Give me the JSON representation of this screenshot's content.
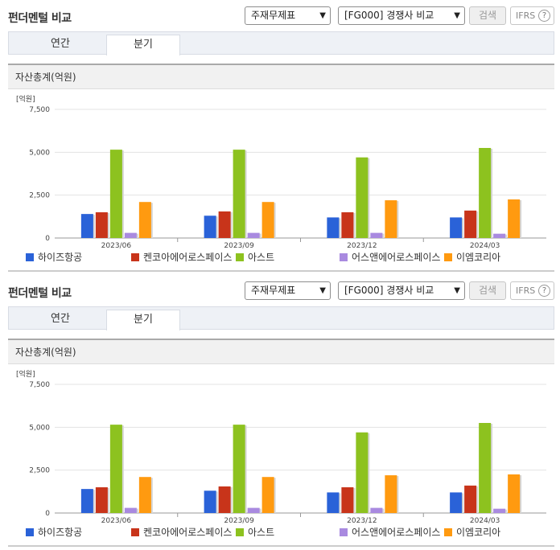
{
  "panels": [
    {
      "title": "펀더멘털 비교",
      "select1": "주재무제표",
      "select2": "[FG000] 경쟁사 비교",
      "search_label": "검색",
      "ifrs_label": "IFRS",
      "help_glyph": "?",
      "tabs": [
        {
          "label": "연간"
        },
        {
          "label": "분기"
        }
      ],
      "active_tab": 1,
      "section_title": "자산총계(억원)",
      "unit_label": "[억원]"
    },
    {
      "title": "펀더멘털 비교",
      "select1": "주재무제표",
      "select2": "[FG000] 경쟁사 비교",
      "search_label": "검색",
      "ifrs_label": "IFRS",
      "help_glyph": "?",
      "tabs": [
        {
          "label": "연간"
        },
        {
          "label": "분기"
        }
      ],
      "active_tab": 1,
      "section_title": "자산총계(억원)",
      "unit_label": "[억원]"
    }
  ],
  "chart_data": [
    {
      "type": "bar",
      "title": "자산총계(억원)",
      "ylabel": "[억원]",
      "ylim": [
        0,
        7500
      ],
      "yticks": [
        "0",
        "2,500",
        "5,000",
        "7,500"
      ],
      "ytick_values": [
        0,
        2500,
        5000,
        7500
      ],
      "grid": true,
      "legend_position": "bottom",
      "categories": [
        "2023/06",
        "2023/09",
        "2023/12",
        "2024/03"
      ],
      "series": [
        {
          "name": "하이즈항공",
          "color": "#2a62d8",
          "values": [
            1400,
            1300,
            1200,
            1200
          ]
        },
        {
          "name": "켄코아에어로스페이스",
          "color": "#c8341a",
          "values": [
            1500,
            1550,
            1500,
            1600
          ]
        },
        {
          "name": "아스트",
          "color": "#8dc21f",
          "values": [
            5150,
            5150,
            4700,
            5250
          ]
        },
        {
          "name": "어스앤에어로스페이스",
          "color": "#a98ae0",
          "values": [
            300,
            300,
            300,
            250
          ]
        },
        {
          "name": "이엠코리아",
          "color": "#ff9a10",
          "values": [
            2100,
            2100,
            2200,
            2250
          ]
        }
      ]
    },
    {
      "type": "bar",
      "title": "자산총계(억원)",
      "ylabel": "[억원]",
      "ylim": [
        0,
        7500
      ],
      "yticks": [
        "0",
        "2,500",
        "5,000",
        "7,500"
      ],
      "ytick_values": [
        0,
        2500,
        5000,
        7500
      ],
      "grid": true,
      "legend_position": "bottom",
      "categories": [
        "2023/06",
        "2023/09",
        "2023/12",
        "2024/03"
      ],
      "series": [
        {
          "name": "하이즈항공",
          "color": "#2a62d8",
          "values": [
            1400,
            1300,
            1200,
            1200
          ]
        },
        {
          "name": "켄코아에어로스페이스",
          "color": "#c8341a",
          "values": [
            1500,
            1550,
            1500,
            1600
          ]
        },
        {
          "name": "아스트",
          "color": "#8dc21f",
          "values": [
            5150,
            5150,
            4700,
            5250
          ]
        },
        {
          "name": "어스앤에어로스페이스",
          "color": "#a98ae0",
          "values": [
            300,
            300,
            300,
            250
          ]
        },
        {
          "name": "이엠코리아",
          "color": "#ff9a10",
          "values": [
            2100,
            2100,
            2200,
            2250
          ]
        }
      ]
    }
  ]
}
